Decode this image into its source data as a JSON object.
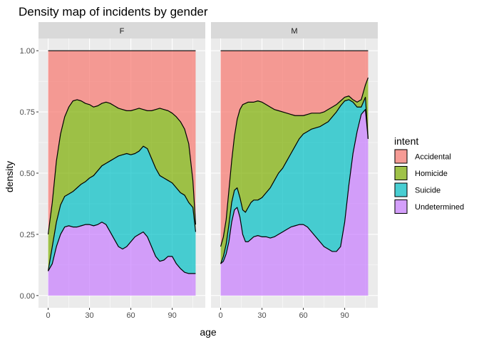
{
  "chart_data": {
    "type": "area",
    "title": "Density map of incidents by gender",
    "xlabel": "age",
    "ylabel": "density",
    "xlim": [
      -7,
      114
    ],
    "ylim": [
      -0.05,
      1.05
    ],
    "x_ticks": [
      0,
      30,
      60,
      90
    ],
    "y_ticks": [
      0,
      0.25,
      0.5,
      0.75,
      1
    ],
    "y_tick_labels": [
      "0.00",
      "0.25",
      "0.50",
      "0.75",
      "1.00"
    ],
    "position": "fill",
    "grid": true,
    "legend": {
      "title": "intent",
      "placement": "right",
      "entries": [
        "Accidental",
        "Homicide",
        "Suicide",
        "Undetermined"
      ]
    },
    "colors": {
      "Accidental": "#F8766D",
      "Homicide": "#7CAE00",
      "Suicide": "#00BFC4",
      "Undetermined": "#C77CFF"
    },
    "facets": [
      {
        "label": "F",
        "x": [
          0,
          3,
          6,
          9,
          12,
          15,
          18,
          21,
          24,
          27,
          30,
          33,
          36,
          39,
          42,
          45,
          48,
          51,
          54,
          57,
          60,
          63,
          66,
          69,
          72,
          75,
          78,
          81,
          84,
          87,
          90,
          93,
          96,
          99,
          102,
          105,
          107
        ],
        "boundaries": {
          "Undetermined": [
            0.1,
            0.13,
            0.2,
            0.25,
            0.28,
            0.285,
            0.28,
            0.28,
            0.285,
            0.29,
            0.29,
            0.285,
            0.29,
            0.3,
            0.29,
            0.26,
            0.23,
            0.2,
            0.19,
            0.2,
            0.22,
            0.24,
            0.25,
            0.26,
            0.24,
            0.2,
            0.16,
            0.14,
            0.145,
            0.16,
            0.16,
            0.13,
            0.11,
            0.095,
            0.09,
            0.09,
            0.09
          ],
          "Suicide": [
            0.1,
            0.2,
            0.3,
            0.37,
            0.405,
            0.415,
            0.425,
            0.44,
            0.455,
            0.465,
            0.48,
            0.49,
            0.51,
            0.53,
            0.54,
            0.55,
            0.56,
            0.57,
            0.575,
            0.58,
            0.575,
            0.58,
            0.59,
            0.61,
            0.6,
            0.56,
            0.52,
            0.49,
            0.48,
            0.47,
            0.46,
            0.44,
            0.42,
            0.41,
            0.38,
            0.36,
            0.26
          ],
          "Homicide": [
            0.25,
            0.38,
            0.55,
            0.66,
            0.73,
            0.77,
            0.795,
            0.8,
            0.795,
            0.785,
            0.78,
            0.77,
            0.775,
            0.785,
            0.79,
            0.785,
            0.775,
            0.765,
            0.76,
            0.755,
            0.755,
            0.76,
            0.765,
            0.76,
            0.755,
            0.755,
            0.76,
            0.765,
            0.76,
            0.755,
            0.745,
            0.73,
            0.71,
            0.68,
            0.62,
            0.47,
            0.29
          ],
          "Accidental": [
            1.0,
            1.0,
            1.0,
            1.0,
            1.0,
            1.0,
            1.0,
            1.0,
            1.0,
            1.0,
            1.0,
            1.0,
            1.0,
            1.0,
            1.0,
            1.0,
            1.0,
            1.0,
            1.0,
            1.0,
            1.0,
            1.0,
            1.0,
            1.0,
            1.0,
            1.0,
            1.0,
            1.0,
            1.0,
            1.0,
            1.0,
            1.0,
            1.0,
            1.0,
            1.0,
            1.0,
            1.0
          ]
        }
      },
      {
        "label": "M",
        "x": [
          0,
          2,
          4,
          6,
          8,
          10,
          12,
          14,
          16,
          18,
          20,
          22,
          24,
          27,
          30,
          33,
          36,
          39,
          42,
          45,
          48,
          51,
          54,
          57,
          60,
          63,
          66,
          69,
          72,
          75,
          78,
          81,
          84,
          87,
          90,
          93,
          96,
          99,
          102,
          105,
          107
        ],
        "boundaries": {
          "Undetermined": [
            0.13,
            0.14,
            0.17,
            0.22,
            0.3,
            0.35,
            0.36,
            0.32,
            0.25,
            0.22,
            0.22,
            0.23,
            0.24,
            0.245,
            0.24,
            0.24,
            0.235,
            0.24,
            0.25,
            0.26,
            0.27,
            0.28,
            0.285,
            0.29,
            0.29,
            0.28,
            0.26,
            0.24,
            0.22,
            0.2,
            0.19,
            0.18,
            0.18,
            0.2,
            0.3,
            0.45,
            0.58,
            0.67,
            0.74,
            0.76,
            0.64
          ],
          "Suicide": [
            0.13,
            0.16,
            0.21,
            0.29,
            0.38,
            0.43,
            0.44,
            0.4,
            0.35,
            0.34,
            0.36,
            0.38,
            0.39,
            0.39,
            0.4,
            0.42,
            0.44,
            0.47,
            0.5,
            0.52,
            0.55,
            0.58,
            0.61,
            0.64,
            0.66,
            0.67,
            0.68,
            0.685,
            0.69,
            0.7,
            0.71,
            0.73,
            0.75,
            0.775,
            0.795,
            0.8,
            0.79,
            0.77,
            0.77,
            0.81,
            0.64
          ],
          "Homicide": [
            0.2,
            0.24,
            0.31,
            0.43,
            0.55,
            0.65,
            0.72,
            0.76,
            0.78,
            0.785,
            0.79,
            0.79,
            0.79,
            0.795,
            0.79,
            0.78,
            0.77,
            0.76,
            0.755,
            0.75,
            0.745,
            0.74,
            0.735,
            0.735,
            0.735,
            0.74,
            0.745,
            0.745,
            0.745,
            0.75,
            0.76,
            0.77,
            0.78,
            0.795,
            0.81,
            0.815,
            0.8,
            0.79,
            0.8,
            0.86,
            0.89
          ],
          "Accidental": [
            1.0,
            1.0,
            1.0,
            1.0,
            1.0,
            1.0,
            1.0,
            1.0,
            1.0,
            1.0,
            1.0,
            1.0,
            1.0,
            1.0,
            1.0,
            1.0,
            1.0,
            1.0,
            1.0,
            1.0,
            1.0,
            1.0,
            1.0,
            1.0,
            1.0,
            1.0,
            1.0,
            1.0,
            1.0,
            1.0,
            1.0,
            1.0,
            1.0,
            1.0,
            1.0,
            1.0,
            1.0,
            1.0,
            1.0,
            1.0,
            1.0
          ]
        }
      }
    ]
  }
}
